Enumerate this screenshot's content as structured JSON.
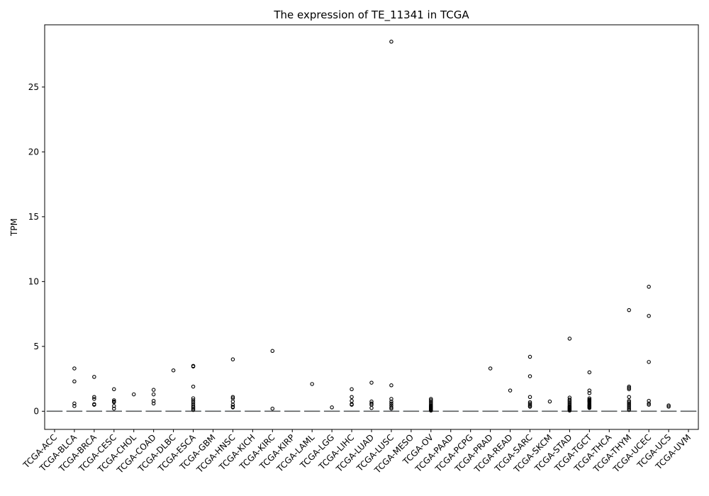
{
  "chart_data": {
    "type": "box",
    "title": "The expression of TE_11341 in TCGA",
    "xlabel": "",
    "ylabel": "TPM",
    "ylim": [
      -1.4,
      29.8
    ],
    "yticks": [
      0,
      5,
      10,
      15,
      20,
      25
    ],
    "grid": false,
    "categories": [
      "TCGA-ACC",
      "TCGA-BLCA",
      "TCGA-BRCA",
      "TCGA-CESC",
      "TCGA-CHOL",
      "TCGA-COAD",
      "TCGA-DLBC",
      "TCGA-ESCA",
      "TCGA-GBM",
      "TCGA-HNSC",
      "TCGA-KICH",
      "TCGA-KIRC",
      "TCGA-KIRP",
      "TCGA-LAML",
      "TCGA-LGG",
      "TCGA-LIHC",
      "TCGA-LUAD",
      "TCGA-LUSC",
      "TCGA-MESO",
      "TCGA-OV",
      "TCGA-PAAD",
      "TCGA-PCPG",
      "TCGA-PRAD",
      "TCGA-READ",
      "TCGA-SARC",
      "TCGA-SKCM",
      "TCGA-STAD",
      "TCGA-TGCT",
      "TCGA-THCA",
      "TCGA-THYM",
      "TCGA-UCEC",
      "TCGA-UCS",
      "TCGA-UVM"
    ],
    "median": [
      0,
      0,
      0,
      0,
      0,
      0,
      0,
      0,
      0,
      0,
      0,
      0,
      0,
      0,
      0,
      0,
      0,
      0,
      0,
      0,
      0,
      0,
      0,
      0,
      0,
      0,
      0,
      0,
      0,
      0,
      0,
      0,
      0
    ],
    "outliers": [
      [],
      [
        3.3,
        2.3,
        0.6,
        0.4
      ],
      [
        2.65,
        1.1,
        0.95,
        0.55,
        0.5
      ],
      [
        1.7,
        0.85,
        0.75,
        0.7,
        0.4,
        0.2
      ],
      [
        1.3
      ],
      [
        1.65,
        1.3,
        0.8,
        0.6
      ],
      [
        3.15
      ],
      [
        3.5,
        3.45,
        1.9,
        1.0,
        0.85,
        0.7,
        0.55,
        0.4,
        0.3,
        0.2,
        0.1
      ],
      [],
      [
        4.0,
        1.1,
        1.0,
        0.75,
        0.5,
        0.35,
        0.3
      ],
      [],
      [
        4.65,
        0.2
      ],
      [],
      [
        2.1
      ],
      [
        0.3
      ],
      [
        1.7,
        1.1,
        0.8,
        0.55,
        0.5
      ],
      [
        2.2,
        0.75,
        0.6,
        0.5,
        0.25
      ],
      [
        28.5,
        2.0,
        0.95,
        0.75,
        0.6,
        0.45,
        0.3,
        0.2
      ],
      [],
      [
        0.95,
        0.85,
        0.75,
        0.65,
        0.55,
        0.45,
        0.4,
        0.35,
        0.3,
        0.25,
        0.2,
        0.15,
        0.1,
        0.05
      ],
      [],
      [],
      [
        3.3
      ],
      [
        1.6
      ],
      [
        4.2,
        2.7,
        1.1,
        0.7,
        0.6,
        0.5,
        0.4,
        0.35
      ],
      [
        0.75
      ],
      [
        5.6,
        1.05,
        0.9,
        0.8,
        0.7,
        0.6,
        0.5,
        0.4,
        0.35,
        0.3,
        0.25,
        0.2,
        0.15,
        0.1,
        0.05
      ],
      [
        3.0,
        1.6,
        1.4,
        1.0,
        0.9,
        0.85,
        0.8,
        0.75,
        0.7,
        0.6,
        0.5,
        0.45,
        0.4,
        0.35,
        0.3,
        0.25
      ],
      [],
      [
        7.8,
        1.9,
        1.8,
        1.7,
        1.1,
        0.8,
        0.7,
        0.6,
        0.5,
        0.4,
        0.3,
        0.2,
        0.1
      ],
      [
        9.6,
        7.35,
        3.8,
        0.8,
        0.6,
        0.5
      ],
      [
        0.45,
        0.35
      ],
      []
    ],
    "colors": {
      "box": "#1f77b4",
      "median": "#555555",
      "outlier": "#000000",
      "axis": "#000000"
    }
  }
}
